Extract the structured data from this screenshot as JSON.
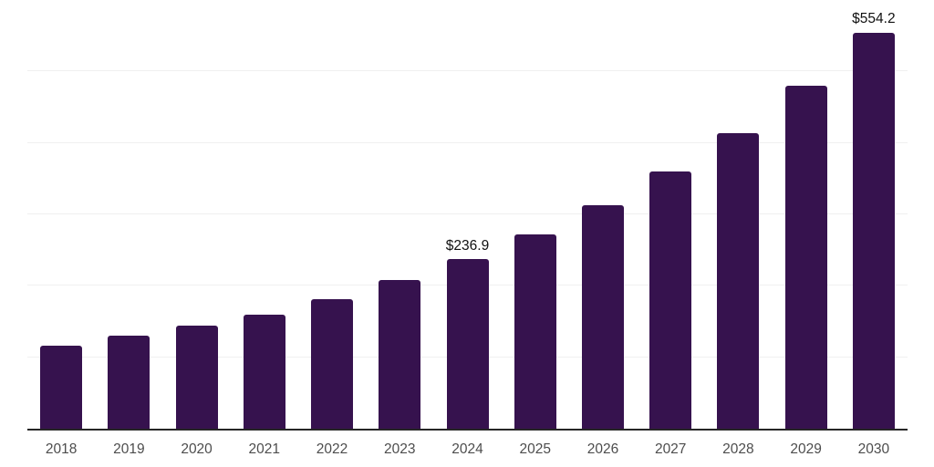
{
  "chart_data": {
    "type": "bar",
    "title": "",
    "xlabel": "",
    "ylabel": "",
    "categories": [
      "2018",
      "2019",
      "2020",
      "2021",
      "2022",
      "2023",
      "2024",
      "2025",
      "2026",
      "2027",
      "2028",
      "2029",
      "2030"
    ],
    "values": [
      116.6,
      130.1,
      144.2,
      159.0,
      181.6,
      207.9,
      236.9,
      272.4,
      312.8,
      359.9,
      413.8,
      479.7,
      554.2
    ],
    "data_labels": {
      "2024": "$236.9",
      "2030": "$554.2"
    },
    "ylim": [
      0,
      600
    ],
    "gridline_interval": 100,
    "grid": true,
    "legend": false,
    "y_tick_labels_visible": false,
    "bar_color": "#36124E",
    "axis_line_color": "#262626",
    "gridline_color": "#f0f0f0",
    "tick_label_color": "#4d4d4d",
    "data_label_color": "#111111"
  }
}
